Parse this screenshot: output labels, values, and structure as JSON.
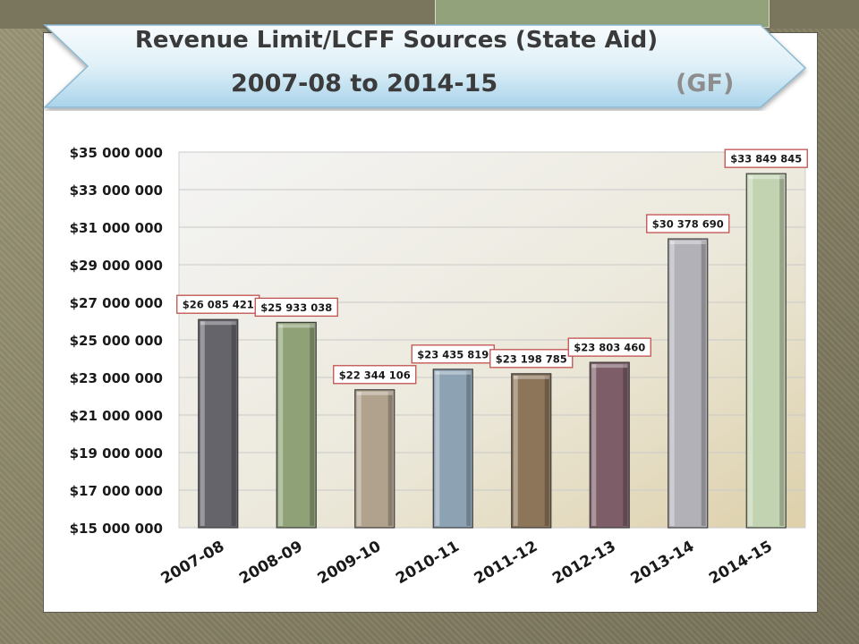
{
  "title": {
    "line1": "Revenue Limit/LCFF Sources (State Aid)",
    "line2": "2007-08 to 2014-15",
    "tag": "(GF)"
  },
  "chart_data": {
    "type": "bar",
    "categories": [
      "2007-08",
      "2008-09",
      "2009-10",
      "2010-11",
      "2011-12",
      "2012-13",
      "2013-14",
      "2014-15"
    ],
    "values": [
      26085421,
      25933038,
      22344106,
      23435819,
      23198785,
      23803460,
      30378690,
      33849845
    ],
    "value_labels": [
      "$26 085 421",
      "$25 933 038",
      "$22 344 106",
      "$23 435 819",
      "$23 198 785",
      "$23 803 460",
      "$30 378 690",
      "$33 849 845"
    ],
    "ylim": [
      15000000,
      35000000
    ],
    "yticks": [
      15000000,
      17000000,
      19000000,
      21000000,
      23000000,
      25000000,
      27000000,
      29000000,
      31000000,
      33000000,
      35000000
    ],
    "ytick_labels": [
      "$15 000 000",
      "$17 000 000",
      "$19 000 000",
      "$21 000 000",
      "$23 000 000",
      "$25 000 000",
      "$27 000 000",
      "$29 000 000",
      "$31 000 000",
      "$33 000 000",
      "$35 000 000"
    ],
    "bar_colors": [
      "#65646b",
      "#8fa176",
      "#b0a28d",
      "#8da2b3",
      "#8c7559",
      "#7c5d68",
      "#b3b1b8",
      "#c2d3b1"
    ],
    "grid": true,
    "legend": "none"
  }
}
